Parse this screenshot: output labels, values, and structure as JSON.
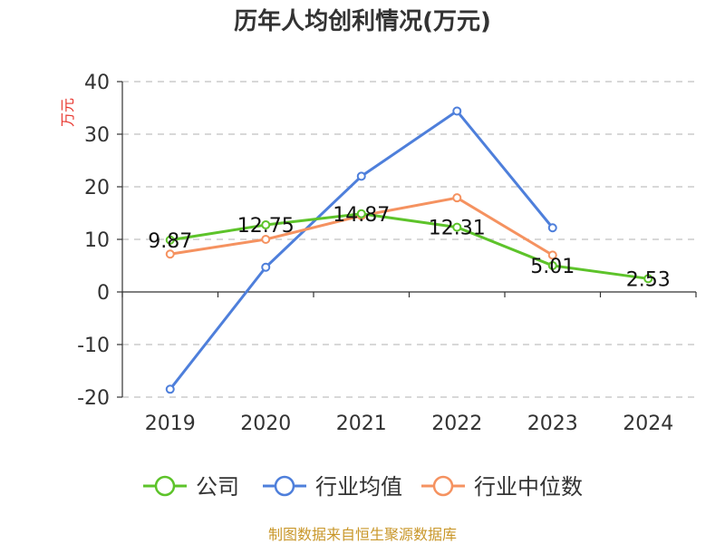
{
  "chart_data": {
    "type": "line",
    "title": "历年人均创利情况(万元)",
    "ylabel": "万元",
    "categories": [
      "2019",
      "2020",
      "2021",
      "2022",
      "2023",
      "2024"
    ],
    "ylim": [
      -20,
      40
    ],
    "yticks": [
      -20,
      -10,
      0,
      10,
      20,
      30,
      40
    ],
    "grid": true,
    "legend_position": "bottom",
    "series": [
      {
        "name": "公司",
        "color": "#5dc32a",
        "values": [
          9.87,
          12.75,
          14.87,
          12.31,
          5.01,
          2.53
        ],
        "labels": [
          "9.87",
          "12.75",
          "14.87",
          "12.31",
          "5.01",
          "2.53"
        ]
      },
      {
        "name": "行业均值",
        "color": "#4e7fdb",
        "values": [
          -18.5,
          4.7,
          22.0,
          34.4,
          12.2,
          null
        ]
      },
      {
        "name": "行业中位数",
        "color": "#f59260",
        "values": [
          7.2,
          10.0,
          14.5,
          17.9,
          7.0,
          null
        ]
      }
    ]
  },
  "source": "制图数据来自恒生聚源数据库"
}
